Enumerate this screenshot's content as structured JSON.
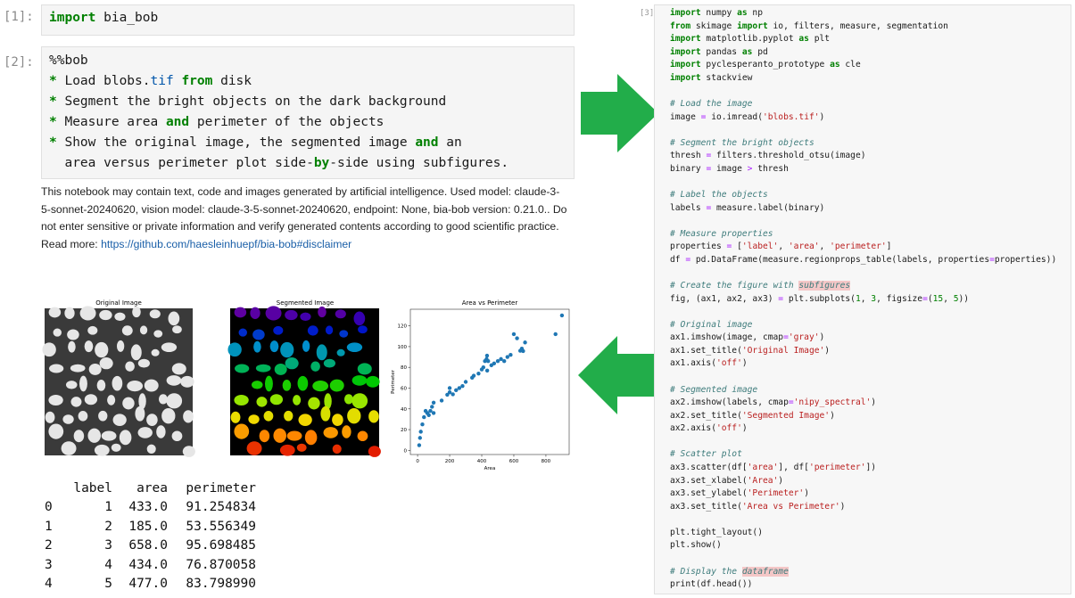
{
  "cell1": {
    "prompt": "[1]:",
    "lines": [
      "import bia_bob"
    ]
  },
  "cell2": {
    "prompt": "[2]:",
    "lines": [
      "%%bob",
      "* Load blobs.tif from disk",
      "* Segment the bright objects on the dark background",
      "* Measure area and perimeter of the objects",
      "* Show the original image, the segmented image and an",
      "  area versus perimeter plot side-by-side using subfigures."
    ]
  },
  "disclaimer": {
    "text": "This notebook may contain text, code and images generated by artificial intelligence. Used model: claude-3-5-sonnet-20240620, vision model: claude-3-5-sonnet-20240620, endpoint: None, bia-bob version: 0.21.0.. Do not enter sensitive or private information and verify generated contents according to good scientific practice. Read more: ",
    "link": "https://github.com/haesleinhuepf/bia-bob#disclaimer"
  },
  "figure": {
    "original_title": "Original Image",
    "segmented_title": "Segmented Image",
    "scatter": {
      "type": "scatter",
      "title": "Area vs Perimeter",
      "xlabel": "Area",
      "ylabel": "Perimeter",
      "color": "#1f77b4",
      "xlim": [
        -45,
        945
      ],
      "ylim": [
        -4,
        136
      ],
      "xticks": [
        0,
        200,
        400,
        600,
        800
      ],
      "yticks": [
        0,
        20,
        40,
        60,
        80,
        100,
        120
      ],
      "x": [
        10,
        15,
        20,
        30,
        40,
        50,
        60,
        70,
        80,
        90,
        100,
        100,
        150,
        185,
        200,
        200,
        220,
        240,
        260,
        280,
        300,
        340,
        350,
        380,
        400,
        410,
        420,
        430,
        433,
        434,
        440,
        460,
        477,
        500,
        520,
        540,
        560,
        580,
        600,
        620,
        640,
        650,
        658,
        670,
        860,
        900
      ],
      "y": [
        5,
        12,
        18,
        25,
        32,
        38,
        36,
        34,
        38,
        42,
        46,
        36,
        48,
        53.6,
        56,
        60,
        54,
        58,
        60,
        62,
        66,
        70,
        72,
        74,
        78,
        80,
        86,
        88,
        91.3,
        76.9,
        86,
        82,
        83.8,
        86,
        88,
        86,
        90,
        92,
        112,
        108,
        96,
        98,
        95.7,
        104,
        112,
        130
      ]
    }
  },
  "table": {
    "header": [
      "label",
      "area",
      "perimeter"
    ],
    "rows": [
      [
        "0",
        "1",
        "433.0",
        "91.254834"
      ],
      [
        "1",
        "2",
        "185.0",
        "53.556349"
      ],
      [
        "2",
        "3",
        "658.0",
        "95.698485"
      ],
      [
        "3",
        "4",
        "434.0",
        "76.870058"
      ],
      [
        "4",
        "5",
        "477.0",
        "83.798990"
      ]
    ]
  },
  "cell3": {
    "prompt": "[3]:",
    "blocks": [
      [
        "import numpy as np",
        "from skimage import io, filters, measure, segmentation",
        "import matplotlib.pyplot as plt",
        "import pandas as pd",
        "import pyclesperanto_prototype as cle",
        "import stackview"
      ],
      [
        "# Load the image",
        "image = io.imread('blobs.tif')"
      ],
      [
        "# Segment the bright objects",
        "thresh = filters.threshold_otsu(image)",
        "binary = image > thresh"
      ],
      [
        "# Label the objects",
        "labels = measure.label(binary)"
      ],
      [
        "# Measure properties",
        "properties = ['label', 'area', 'perimeter']",
        "df = pd.DataFrame(measure.regionprops_table(labels, properties=properties))"
      ],
      [
        "# Create the figure with subfigures",
        "fig, (ax1, ax2, ax3) = plt.subplots(1, 3, figsize=(15, 5))"
      ],
      [
        "# Original image",
        "ax1.imshow(image, cmap='gray')",
        "ax1.set_title('Original Image')",
        "ax1.axis('off')"
      ],
      [
        "# Segmented image",
        "ax2.imshow(labels, cmap='nipy_spectral')",
        "ax2.set_title('Segmented Image')",
        "ax2.axis('off')"
      ],
      [
        "# Scatter plot",
        "ax3.scatter(df['area'], df['perimeter'])",
        "ax3.set_xlabel('Area')",
        "ax3.set_ylabel('Perimeter')",
        "ax3.set_title('Area vs Perimeter')"
      ],
      [
        "plt.tight_layout()",
        "plt.show()"
      ],
      [
        "# Display the dataframe",
        "print(df.head())"
      ]
    ]
  }
}
